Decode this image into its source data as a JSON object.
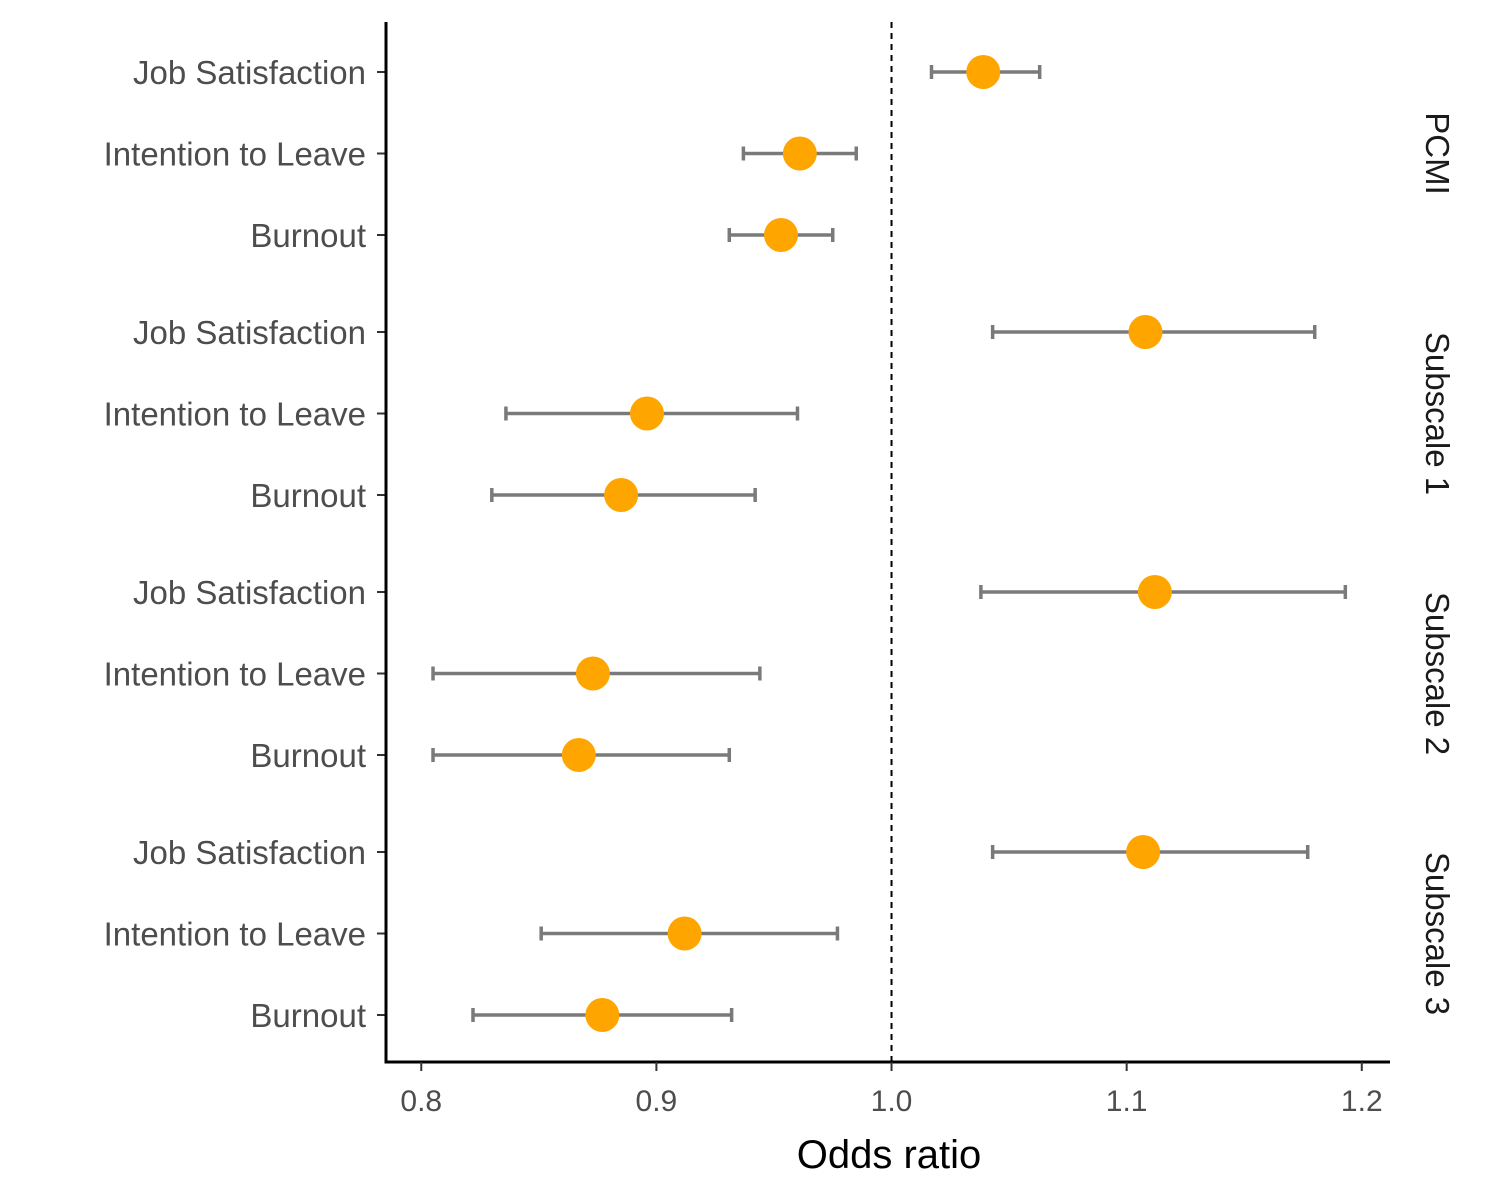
{
  "chart_data": {
    "type": "scatter",
    "subtype": "forest-plot",
    "xlabel": "Odds ratio",
    "xlim": [
      0.785,
      1.212
    ],
    "xticks": [
      0.8,
      0.9,
      1.0,
      1.1,
      1.2
    ],
    "xtick_labels": [
      "0.8",
      "0.9",
      "1.0",
      "1.1",
      "1.2"
    ],
    "reference_line": 1.0,
    "point_color": "#ffa500",
    "errorbar_color": "#7a7a7a",
    "grid": false,
    "panels": [
      {
        "label": "PCMI",
        "rows": [
          {
            "label": "Job Satisfaction",
            "or": 1.039,
            "lo": 1.017,
            "hi": 1.063
          },
          {
            "label": "Intention to Leave",
            "or": 0.961,
            "lo": 0.937,
            "hi": 0.985
          },
          {
            "label": "Burnout",
            "or": 0.953,
            "lo": 0.931,
            "hi": 0.975
          }
        ]
      },
      {
        "label": "Subscale 1",
        "rows": [
          {
            "label": "Job Satisfaction",
            "or": 1.108,
            "lo": 1.043,
            "hi": 1.18
          },
          {
            "label": "Intention to Leave",
            "or": 0.896,
            "lo": 0.836,
            "hi": 0.96
          },
          {
            "label": "Burnout",
            "or": 0.885,
            "lo": 0.83,
            "hi": 0.942
          }
        ]
      },
      {
        "label": "Subscale 2",
        "rows": [
          {
            "label": "Job Satisfaction",
            "or": 1.112,
            "lo": 1.038,
            "hi": 1.193
          },
          {
            "label": "Intention to Leave",
            "or": 0.873,
            "lo": 0.805,
            "hi": 0.944
          },
          {
            "label": "Burnout",
            "or": 0.867,
            "lo": 0.805,
            "hi": 0.931
          }
        ]
      },
      {
        "label": "Subscale 3",
        "rows": [
          {
            "label": "Job Satisfaction",
            "or": 1.107,
            "lo": 1.043,
            "hi": 1.177
          },
          {
            "label": "Intention to Leave",
            "or": 0.912,
            "lo": 0.851,
            "hi": 0.977
          },
          {
            "label": "Burnout",
            "or": 0.877,
            "lo": 0.822,
            "hi": 0.932
          }
        ]
      }
    ]
  }
}
